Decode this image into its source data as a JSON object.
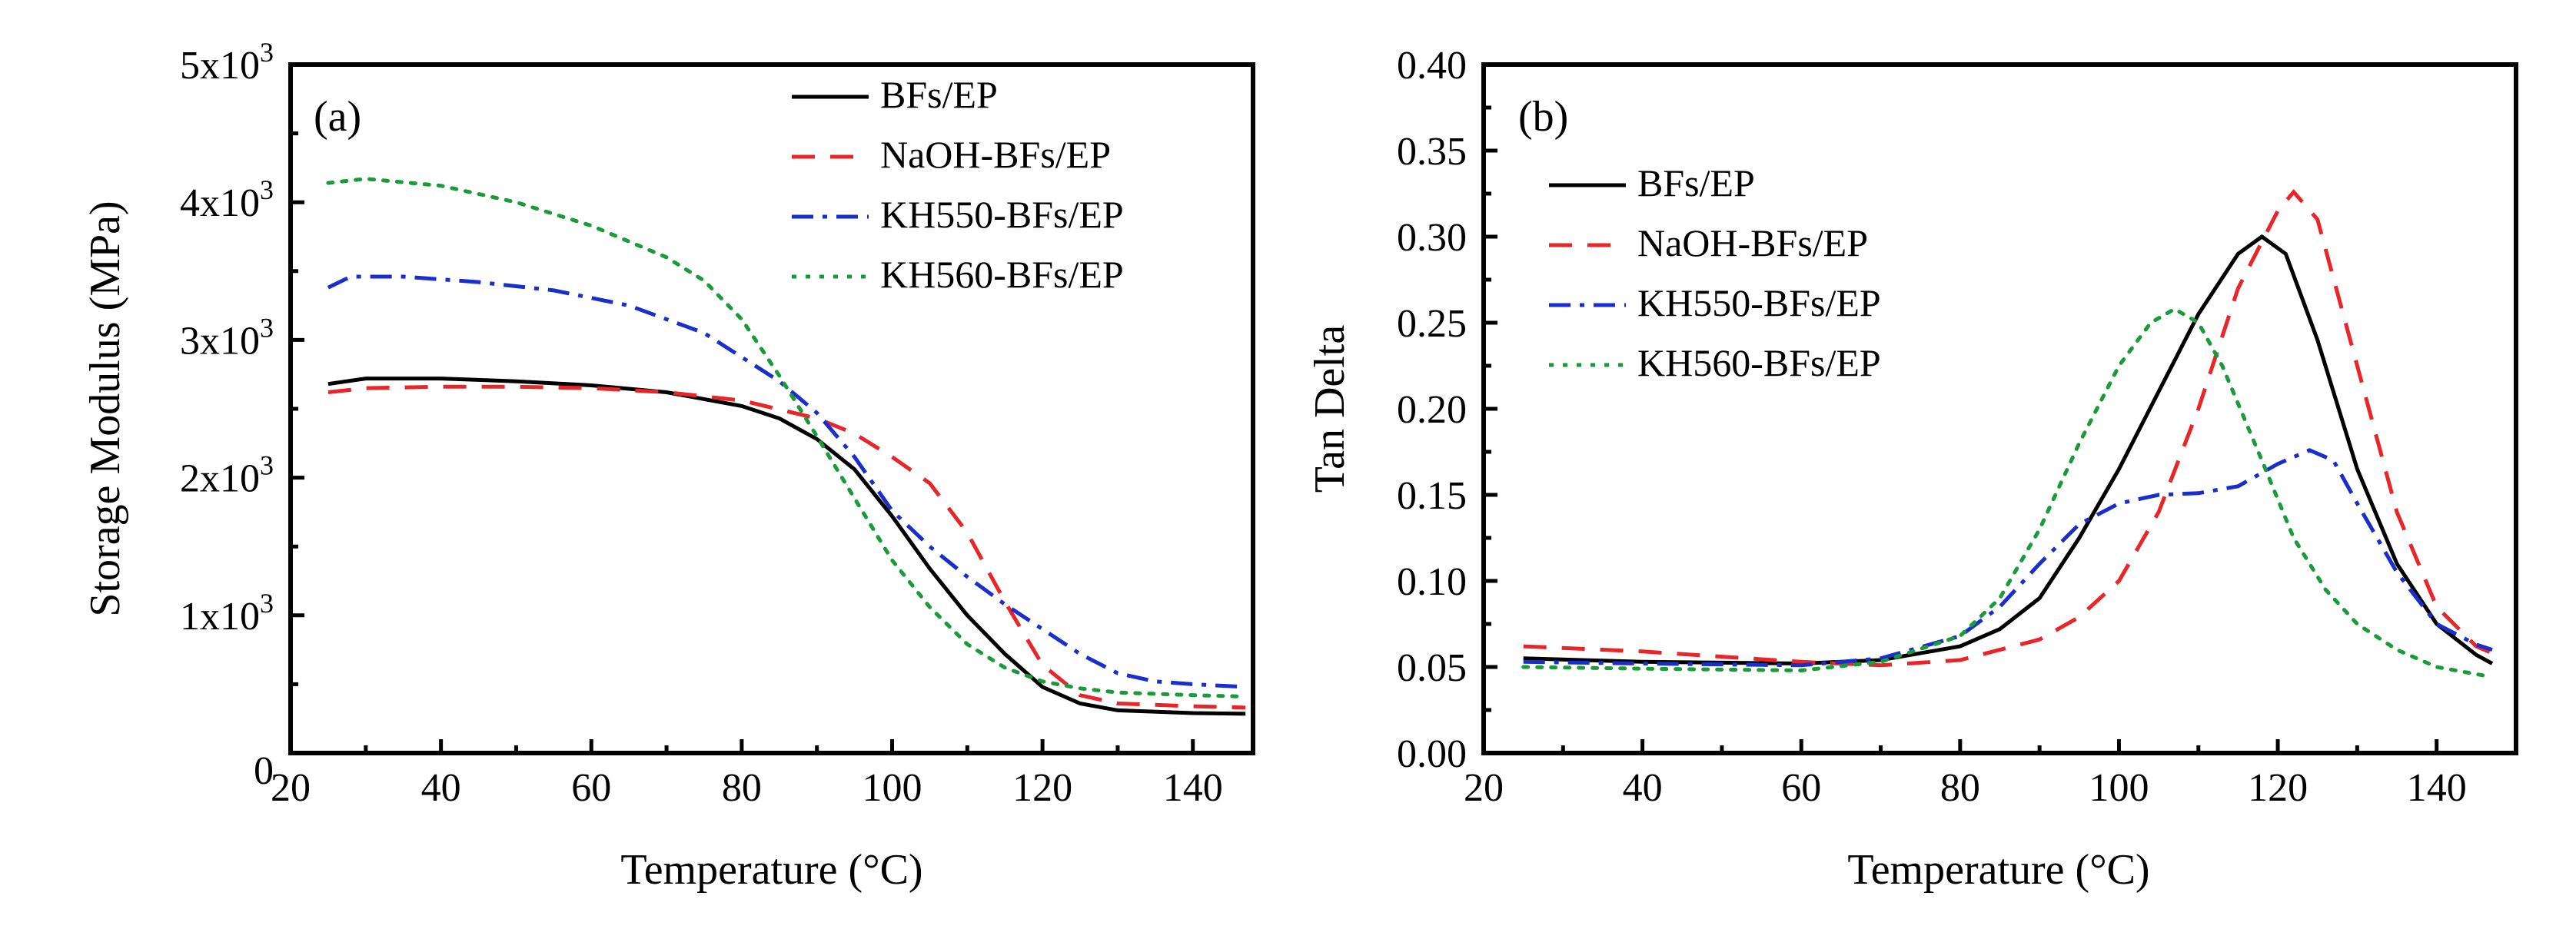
{
  "chart_data": [
    {
      "type": "line",
      "panel_label": "(a)",
      "xlabel": "Temperature (°C)",
      "ylabel": "Storage Modulus (MPa)",
      "xlim": [
        20,
        148
      ],
      "ylim": [
        0,
        5000
      ],
      "xticks": [
        20,
        40,
        60,
        80,
        100,
        120,
        140
      ],
      "xtick_labels": [
        "20",
        "40",
        "60",
        "80",
        "100",
        "120",
        "140"
      ],
      "yticks": [
        0,
        1000,
        2000,
        3000,
        4000,
        5000
      ],
      "ytick_labels": [
        {
          "base": "0",
          "exp": ""
        },
        {
          "base": "1x10",
          "exp": "3"
        },
        {
          "base": "2x10",
          "exp": "3"
        },
        {
          "base": "3x10",
          "exp": "3"
        },
        {
          "base": "4x10",
          "exp": "3"
        },
        {
          "base": "5x10",
          "exp": "3"
        }
      ],
      "legend_position": "top-right",
      "series": [
        {
          "name": "BFs/EP",
          "color": "#000000",
          "dash": "solid",
          "points": [
            [
              25,
              2680
            ],
            [
              30,
              2720
            ],
            [
              40,
              2720
            ],
            [
              50,
              2700
            ],
            [
              60,
              2670
            ],
            [
              70,
              2620
            ],
            [
              80,
              2520
            ],
            [
              85,
              2430
            ],
            [
              90,
              2280
            ],
            [
              95,
              2060
            ],
            [
              100,
              1720
            ],
            [
              105,
              1340
            ],
            [
              110,
              1000
            ],
            [
              115,
              720
            ],
            [
              120,
              480
            ],
            [
              125,
              360
            ],
            [
              130,
              310
            ],
            [
              140,
              290
            ],
            [
              147,
              285
            ]
          ]
        },
        {
          "name": "NaOH-BFs/EP",
          "color": "#e8262a",
          "dash": "long-dash",
          "points": [
            [
              25,
              2620
            ],
            [
              30,
              2650
            ],
            [
              40,
              2660
            ],
            [
              50,
              2660
            ],
            [
              60,
              2650
            ],
            [
              70,
              2620
            ],
            [
              80,
              2560
            ],
            [
              90,
              2430
            ],
            [
              95,
              2320
            ],
            [
              100,
              2150
            ],
            [
              105,
              1960
            ],
            [
              110,
              1600
            ],
            [
              115,
              1100
            ],
            [
              120,
              640
            ],
            [
              125,
              420
            ],
            [
              130,
              360
            ],
            [
              140,
              340
            ],
            [
              147,
              330
            ]
          ]
        },
        {
          "name": "KH550-BFs/EP",
          "color": "#1a2ecc",
          "dash": "dash-dot",
          "points": [
            [
              25,
              3380
            ],
            [
              28,
              3460
            ],
            [
              35,
              3460
            ],
            [
              45,
              3420
            ],
            [
              55,
              3360
            ],
            [
              65,
              3250
            ],
            [
              75,
              3050
            ],
            [
              85,
              2700
            ],
            [
              90,
              2470
            ],
            [
              95,
              2150
            ],
            [
              100,
              1760
            ],
            [
              105,
              1500
            ],
            [
              110,
              1280
            ],
            [
              115,
              1080
            ],
            [
              120,
              900
            ],
            [
              125,
              720
            ],
            [
              130,
              580
            ],
            [
              135,
              520
            ],
            [
              140,
              500
            ],
            [
              147,
              480
            ]
          ]
        },
        {
          "name": "KH560-BFs/EP",
          "color": "#1a9a3a",
          "dash": "dotted",
          "points": [
            [
              25,
              4140
            ],
            [
              30,
              4170
            ],
            [
              40,
              4120
            ],
            [
              50,
              4000
            ],
            [
              60,
              3830
            ],
            [
              70,
              3600
            ],
            [
              75,
              3430
            ],
            [
              80,
              3150
            ],
            [
              85,
              2740
            ],
            [
              90,
              2300
            ],
            [
              95,
              1850
            ],
            [
              100,
              1400
            ],
            [
              105,
              1060
            ],
            [
              110,
              790
            ],
            [
              115,
              620
            ],
            [
              120,
              520
            ],
            [
              125,
              470
            ],
            [
              130,
              440
            ],
            [
              140,
              420
            ],
            [
              147,
              410
            ]
          ]
        }
      ]
    },
    {
      "type": "line",
      "panel_label": "(b)",
      "xlabel": "Temperature (°C)",
      "ylabel": "Tan Delta",
      "xlim": [
        20,
        150
      ],
      "ylim": [
        0,
        0.4
      ],
      "xticks": [
        20,
        40,
        60,
        80,
        100,
        120,
        140
      ],
      "xtick_labels": [
        "20",
        "40",
        "60",
        "80",
        "100",
        "120",
        "140"
      ],
      "yticks": [
        0,
        0.05,
        0.1,
        0.15,
        0.2,
        0.25,
        0.3,
        0.35,
        0.4
      ],
      "ytick_labels": [
        "0.00",
        "0.05",
        "0.10",
        "0.15",
        "0.20",
        "0.25",
        "0.30",
        "0.35",
        "0.40"
      ],
      "legend_position": "top-left",
      "series": [
        {
          "name": "BFs/EP",
          "color": "#000000",
          "dash": "solid",
          "points": [
            [
              25,
              0.055
            ],
            [
              40,
              0.053
            ],
            [
              60,
              0.052
            ],
            [
              70,
              0.054
            ],
            [
              80,
              0.062
            ],
            [
              85,
              0.072
            ],
            [
              90,
              0.09
            ],
            [
              95,
              0.125
            ],
            [
              100,
              0.165
            ],
            [
              105,
              0.21
            ],
            [
              110,
              0.255
            ],
            [
              115,
              0.29
            ],
            [
              118,
              0.3
            ],
            [
              121,
              0.29
            ],
            [
              125,
              0.24
            ],
            [
              130,
              0.165
            ],
            [
              135,
              0.11
            ],
            [
              140,
              0.075
            ],
            [
              145,
              0.057
            ],
            [
              147,
              0.052
            ]
          ]
        },
        {
          "name": "NaOH-BFs/EP",
          "color": "#e8262a",
          "dash": "long-dash",
          "points": [
            [
              25,
              0.062
            ],
            [
              40,
              0.059
            ],
            [
              50,
              0.056
            ],
            [
              60,
              0.053
            ],
            [
              70,
              0.051
            ],
            [
              80,
              0.054
            ],
            [
              90,
              0.066
            ],
            [
              95,
              0.079
            ],
            [
              100,
              0.1
            ],
            [
              105,
              0.14
            ],
            [
              110,
              0.2
            ],
            [
              115,
              0.27
            ],
            [
              120,
              0.315
            ],
            [
              122,
              0.326
            ],
            [
              125,
              0.31
            ],
            [
              130,
              0.225
            ],
            [
              135,
              0.14
            ],
            [
              140,
              0.085
            ],
            [
              145,
              0.062
            ],
            [
              147,
              0.058
            ]
          ]
        },
        {
          "name": "KH550-BFs/EP",
          "color": "#1a2ecc",
          "dash": "dash-dot",
          "points": [
            [
              25,
              0.053
            ],
            [
              40,
              0.052
            ],
            [
              60,
              0.051
            ],
            [
              70,
              0.055
            ],
            [
              80,
              0.068
            ],
            [
              85,
              0.085
            ],
            [
              90,
              0.11
            ],
            [
              95,
              0.133
            ],
            [
              100,
              0.145
            ],
            [
              105,
              0.15
            ],
            [
              110,
              0.151
            ],
            [
              115,
              0.155
            ],
            [
              120,
              0.168
            ],
            [
              124,
              0.176
            ],
            [
              127,
              0.17
            ],
            [
              130,
              0.145
            ],
            [
              135,
              0.105
            ],
            [
              140,
              0.075
            ],
            [
              145,
              0.063
            ],
            [
              147,
              0.06
            ]
          ]
        },
        {
          "name": "KH560-BFs/EP",
          "color": "#1a9a3a",
          "dash": "dotted",
          "points": [
            [
              25,
              0.05
            ],
            [
              40,
              0.049
            ],
            [
              60,
              0.048
            ],
            [
              70,
              0.053
            ],
            [
              80,
              0.068
            ],
            [
              85,
              0.09
            ],
            [
              90,
              0.13
            ],
            [
              95,
              0.18
            ],
            [
              100,
              0.225
            ],
            [
              104,
              0.25
            ],
            [
              107,
              0.258
            ],
            [
              110,
              0.25
            ],
            [
              113,
              0.225
            ],
            [
              118,
              0.17
            ],
            [
              122,
              0.125
            ],
            [
              126,
              0.095
            ],
            [
              130,
              0.075
            ],
            [
              135,
              0.06
            ],
            [
              140,
              0.05
            ],
            [
              146,
              0.045
            ]
          ]
        }
      ]
    }
  ]
}
